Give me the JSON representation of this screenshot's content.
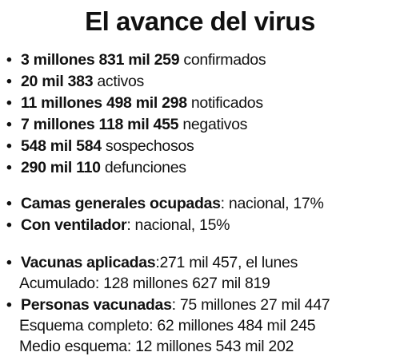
{
  "title": "El avance del virus",
  "bullet": "•",
  "stats": [
    {
      "bold": "3 millones 831 mil 259",
      "text": " confirmados"
    },
    {
      "bold": "20 mil 383",
      "text": " activos"
    },
    {
      "bold": "11 millones 498 mil 298",
      "text": " notificados"
    },
    {
      "bold": "7 millones 118 mil 455",
      "text": " negativos"
    },
    {
      "bold": "548 mil 584",
      "text": " sospechosos"
    },
    {
      "bold": "290 mil 110",
      "text": " defunciones"
    }
  ],
  "beds": [
    {
      "bold": "Camas generales ocupadas",
      "text": ": nacional, 17%"
    },
    {
      "bold": "Con ventilador",
      "text": ": nacional, 15%"
    }
  ],
  "vaccines": {
    "applied_bold": "Vacunas aplicadas",
    "applied_text": ":271 mil 457, el lunes",
    "accumulated": "Acumulado: 128 millones 627 mil 819",
    "people_bold": "Personas vacunadas",
    "people_text": ": 75 millones 27 mil 447",
    "complete": "Esquema completo: 62 millones 484 mil 245",
    "half": "Medio esquema: 12 millones 543 mil 202"
  }
}
